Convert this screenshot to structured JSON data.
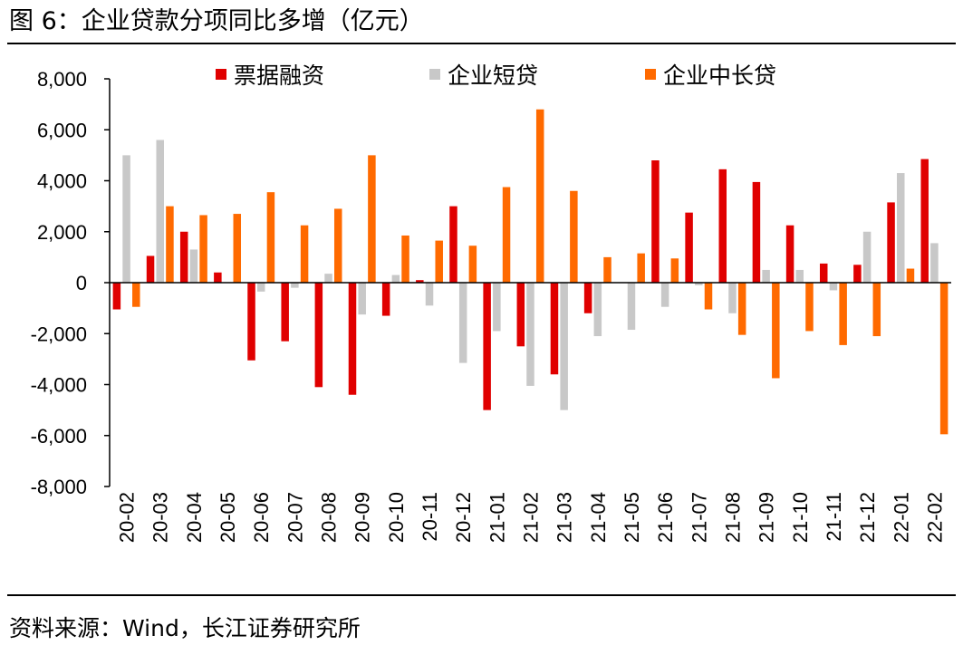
{
  "title": "图 6：企业贷款分项同比多增（亿元）",
  "source": "资料来源：Wind，长江证券研究所",
  "chart_data": {
    "type": "bar",
    "title": "图 6：企业贷款分项同比多增（亿元）",
    "xlabel": "",
    "ylabel": "",
    "ylim": [
      -8000,
      8000
    ],
    "yticks": [
      8000,
      6000,
      4000,
      2000,
      0,
      -2000,
      -4000,
      -6000,
      -8000
    ],
    "ytick_labels": [
      "8,000",
      "6,000",
      "4,000",
      "2,000",
      "0",
      "-2,000",
      "-4,000",
      "-6,000",
      "-8,000"
    ],
    "grid": false,
    "legend_position": "top",
    "categories": [
      "20-02",
      "20-03",
      "20-04",
      "20-05",
      "20-06",
      "20-07",
      "20-08",
      "20-09",
      "20-10",
      "20-11",
      "20-12",
      "21-01",
      "21-02",
      "21-03",
      "21-04",
      "21-05",
      "21-06",
      "21-07",
      "21-08",
      "21-09",
      "21-10",
      "21-11",
      "21-12",
      "22-01",
      "22-02"
    ],
    "series": [
      {
        "name": "票据融资",
        "color": "#E00000",
        "values": [
          -1050,
          1050,
          2000,
          400,
          -3050,
          -2300,
          -4100,
          -4400,
          -1300,
          100,
          3000,
          -5000,
          -2500,
          -3600,
          -1200,
          0,
          4800,
          2750,
          4450,
          3950,
          2250,
          750,
          700,
          3150,
          4850
        ]
      },
      {
        "name": "企业短贷",
        "color": "#C8C8C8",
        "values": [
          5000,
          5600,
          1300,
          0,
          -350,
          -200,
          350,
          -1250,
          300,
          -900,
          -3150,
          -1900,
          -4050,
          -5000,
          -2100,
          -1850,
          -950,
          -100,
          -1200,
          500,
          500,
          -300,
          2000,
          4300,
          1550
        ]
      },
      {
        "name": "企业中长贷",
        "color": "#FF6A00",
        "values": [
          -950,
          3000,
          2650,
          2700,
          3550,
          2250,
          2900,
          5000,
          1850,
          1650,
          1450,
          3750,
          6800,
          3600,
          1000,
          1150,
          950,
          -1050,
          -2050,
          -3750,
          -1900,
          -2450,
          -2100,
          550,
          -5950
        ]
      }
    ]
  }
}
